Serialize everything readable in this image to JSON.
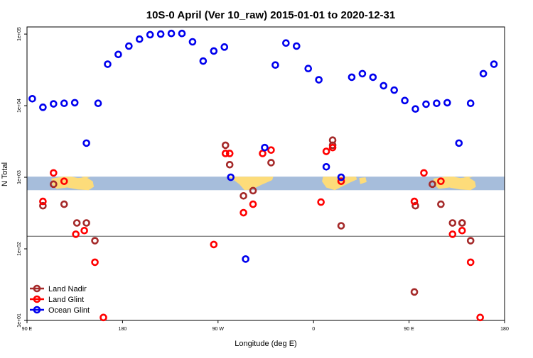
{
  "chart_data": {
    "type": "scatter",
    "title": "10S-0 April (Ver 10_raw)   2015-01-01 to 2020-12-31",
    "xlabel": "Longitude (deg E)",
    "ylabel": "N Total",
    "x_scale": "linear",
    "y_scale": "log",
    "xlim": [
      90,
      540
    ],
    "ylim_exp": [
      1,
      5.1
    ],
    "x_ticks": [
      {
        "value": 90,
        "label": "90 E"
      },
      {
        "value": 180,
        "label": "180"
      },
      {
        "value": 270,
        "label": "90 W"
      },
      {
        "value": 360,
        "label": "0"
      },
      {
        "value": 450,
        "label": "90 E"
      },
      {
        "value": 540,
        "label": "180"
      }
    ],
    "y_ticks": [
      {
        "value": 10,
        "label": "1e+01"
      },
      {
        "value": 100,
        "label": "1e+02"
      },
      {
        "value": 1000,
        "label": "1e+03"
      },
      {
        "value": 10000,
        "label": "1e+04"
      },
      {
        "value": 100000,
        "label": "1e+05"
      }
    ],
    "reference_line": {
      "y": 150
    },
    "map_band": {
      "y_range": [
        660,
        1020
      ],
      "ocean_color": "#a6bddb",
      "land_color": "#fddc7a"
    },
    "grid": false,
    "legend_position": "bottom-left",
    "series": [
      {
        "name": "Land Nadir",
        "color": "#a52a2a",
        "points": [
          {
            "x": 105,
            "y": 400
          },
          {
            "x": 115,
            "y": 800
          },
          {
            "x": 125,
            "y": 420
          },
          {
            "x": 137,
            "y": 230
          },
          {
            "x": 146,
            "y": 230
          },
          {
            "x": 154,
            "y": 130
          },
          {
            "x": 277,
            "y": 2800
          },
          {
            "x": 281,
            "y": 1500
          },
          {
            "x": 294,
            "y": 550
          },
          {
            "x": 303,
            "y": 650
          },
          {
            "x": 320,
            "y": 1600
          },
          {
            "x": 378,
            "y": 3300
          },
          {
            "x": 378,
            "y": 2800
          },
          {
            "x": 386,
            "y": 210
          },
          {
            "x": 456,
            "y": 400
          },
          {
            "x": 472,
            "y": 800
          },
          {
            "x": 480,
            "y": 420
          },
          {
            "x": 491,
            "y": 230
          },
          {
            "x": 500,
            "y": 230
          },
          {
            "x": 508,
            "y": 130
          },
          {
            "x": 500,
            "y": 230
          },
          {
            "x": 455,
            "y": 25
          }
        ]
      },
      {
        "name": "Land Glint",
        "color": "#ff0000",
        "points": [
          {
            "x": 105,
            "y": 460
          },
          {
            "x": 115,
            "y": 1150
          },
          {
            "x": 125,
            "y": 880
          },
          {
            "x": 136,
            "y": 160
          },
          {
            "x": 144,
            "y": 180
          },
          {
            "x": 154,
            "y": 65
          },
          {
            "x": 162,
            "y": 11
          },
          {
            "x": 266,
            "y": 115
          },
          {
            "x": 277,
            "y": 2150
          },
          {
            "x": 281,
            "y": 2150
          },
          {
            "x": 294,
            "y": 320
          },
          {
            "x": 303,
            "y": 420
          },
          {
            "x": 312,
            "y": 2150
          },
          {
            "x": 320,
            "y": 2400
          },
          {
            "x": 367,
            "y": 450
          },
          {
            "x": 372,
            "y": 2300
          },
          {
            "x": 378,
            "y": 2600
          },
          {
            "x": 386,
            "y": 880
          },
          {
            "x": 464,
            "y": 1150
          },
          {
            "x": 480,
            "y": 880
          },
          {
            "x": 491,
            "y": 160
          },
          {
            "x": 500,
            "y": 180
          },
          {
            "x": 508,
            "y": 65
          },
          {
            "x": 517,
            "y": 11
          },
          {
            "x": 455,
            "y": 460
          }
        ]
      },
      {
        "name": "Ocean Glint",
        "color": "#0000ee",
        "points": [
          {
            "x": 95,
            "y": 12500
          },
          {
            "x": 105,
            "y": 9500
          },
          {
            "x": 115,
            "y": 10600
          },
          {
            "x": 125,
            "y": 10800
          },
          {
            "x": 135,
            "y": 11000
          },
          {
            "x": 146,
            "y": 3000
          },
          {
            "x": 157,
            "y": 10800
          },
          {
            "x": 166,
            "y": 38000
          },
          {
            "x": 176,
            "y": 52000
          },
          {
            "x": 186,
            "y": 68000
          },
          {
            "x": 196,
            "y": 85000
          },
          {
            "x": 206,
            "y": 98000
          },
          {
            "x": 216,
            "y": 100000
          },
          {
            "x": 226,
            "y": 102000
          },
          {
            "x": 236,
            "y": 102000
          },
          {
            "x": 246,
            "y": 78000
          },
          {
            "x": 256,
            "y": 42000
          },
          {
            "x": 266,
            "y": 58000
          },
          {
            "x": 276,
            "y": 66000
          },
          {
            "x": 282,
            "y": 1000
          },
          {
            "x": 296,
            "y": 72
          },
          {
            "x": 314,
            "y": 2600
          },
          {
            "x": 324,
            "y": 37000
          },
          {
            "x": 334,
            "y": 75000
          },
          {
            "x": 344,
            "y": 68000
          },
          {
            "x": 355,
            "y": 33000
          },
          {
            "x": 365,
            "y": 23000
          },
          {
            "x": 372,
            "y": 1400
          },
          {
            "x": 386,
            "y": 1000
          },
          {
            "x": 396,
            "y": 25000
          },
          {
            "x": 406,
            "y": 28000
          },
          {
            "x": 416,
            "y": 25000
          },
          {
            "x": 426,
            "y": 19000
          },
          {
            "x": 436,
            "y": 16500
          },
          {
            "x": 446,
            "y": 11800
          },
          {
            "x": 456,
            "y": 9000
          },
          {
            "x": 466,
            "y": 10500
          },
          {
            "x": 476,
            "y": 10800
          },
          {
            "x": 486,
            "y": 11000
          },
          {
            "x": 497,
            "y": 3000
          },
          {
            "x": 508,
            "y": 10800
          },
          {
            "x": 520,
            "y": 28000
          },
          {
            "x": 530,
            "y": 38000
          }
        ]
      }
    ]
  }
}
